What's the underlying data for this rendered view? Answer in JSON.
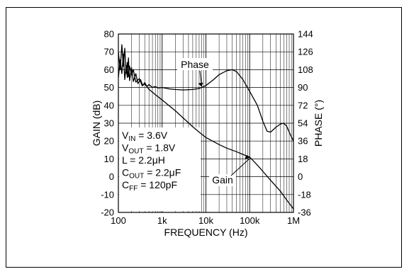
{
  "chart_data": {
    "type": "line",
    "title": "",
    "xlabel": "FREQUENCY (Hz)",
    "ylabel_left": "GAIN (dB)",
    "ylabel_right": "PHASE (°)",
    "x_scale": "log",
    "xlim": [
      100,
      1000000
    ],
    "ylim_left": [
      -20,
      80
    ],
    "ylim_right": [
      -36,
      144
    ],
    "x_ticks": [
      {
        "value": 100,
        "label": "100"
      },
      {
        "value": 1000,
        "label": "1k"
      },
      {
        "value": 10000,
        "label": "10k"
      },
      {
        "value": 100000,
        "label": "100k"
      },
      {
        "value": 1000000,
        "label": "1M"
      }
    ],
    "y_ticks_left": [
      {
        "value": 80,
        "label": "80"
      },
      {
        "value": 70,
        "label": "70"
      },
      {
        "value": 60,
        "label": "60"
      },
      {
        "value": 50,
        "label": "50"
      },
      {
        "value": 40,
        "label": "40"
      },
      {
        "value": 30,
        "label": "30"
      },
      {
        "value": 20,
        "label": "20"
      },
      {
        "value": 10,
        "label": "10"
      },
      {
        "value": 0,
        "label": "0"
      },
      {
        "value": -10,
        "label": "-10"
      },
      {
        "value": -20,
        "label": "-20"
      }
    ],
    "y_ticks_right": [
      {
        "value": 144,
        "label": "144"
      },
      {
        "value": 126,
        "label": "126"
      },
      {
        "value": 108,
        "label": "108"
      },
      {
        "value": 90,
        "label": "90"
      },
      {
        "value": 72,
        "label": "72"
      },
      {
        "value": 54,
        "label": "54"
      },
      {
        "value": 36,
        "label": "36"
      },
      {
        "value": 18,
        "label": "18"
      },
      {
        "value": 0,
        "label": "0"
      },
      {
        "value": -18,
        "label": "-18"
      },
      {
        "value": -36,
        "label": "-36"
      }
    ],
    "grid": true,
    "series": [
      {
        "name": "Phase",
        "axis": "right",
        "points": [
          [
            100,
            100
          ],
          [
            110,
            118
          ],
          [
            120,
            104
          ],
          [
            130,
            124
          ],
          [
            140,
            98
          ],
          [
            150,
            112
          ],
          [
            160,
            100
          ],
          [
            170,
            120
          ],
          [
            180,
            97
          ],
          [
            200,
            110
          ],
          [
            220,
            96
          ],
          [
            250,
            104
          ],
          [
            280,
            94
          ],
          [
            320,
            98
          ],
          [
            360,
            92
          ],
          [
            400,
            95
          ],
          [
            450,
            91
          ],
          [
            500,
            93
          ],
          [
            600,
            90
          ],
          [
            700,
            91
          ],
          [
            800,
            89.5
          ],
          [
            1000,
            90
          ],
          [
            1500,
            88.5
          ],
          [
            2000,
            88
          ],
          [
            3000,
            87.5
          ],
          [
            5000,
            88
          ],
          [
            7000,
            89
          ],
          [
            10000,
            92
          ],
          [
            15000,
            98
          ],
          [
            20000,
            103
          ],
          [
            30000,
            107
          ],
          [
            40000,
            108
          ],
          [
            50000,
            106
          ],
          [
            70000,
            98
          ],
          [
            100000,
            86
          ],
          [
            150000,
            72
          ],
          [
            200000,
            56
          ],
          [
            250000,
            46
          ],
          [
            300000,
            45
          ],
          [
            400000,
            50
          ],
          [
            500000,
            53
          ],
          [
            600000,
            54
          ],
          [
            700000,
            51
          ],
          [
            800000,
            45
          ],
          [
            900000,
            40
          ],
          [
            1000000,
            36
          ]
        ]
      },
      {
        "name": "Gain",
        "axis": "left",
        "points": [
          [
            100,
            70
          ],
          [
            110,
            60
          ],
          [
            120,
            74
          ],
          [
            130,
            62
          ],
          [
            140,
            72
          ],
          [
            150,
            58
          ],
          [
            160,
            64
          ],
          [
            170,
            56
          ],
          [
            180,
            62
          ],
          [
            200,
            57
          ],
          [
            220,
            60
          ],
          [
            250,
            53
          ],
          [
            300,
            55
          ],
          [
            350,
            51
          ],
          [
            400,
            52
          ],
          [
            500,
            49
          ],
          [
            700,
            46
          ],
          [
            1000,
            43
          ],
          [
            2000,
            37
          ],
          [
            3000,
            33
          ],
          [
            5000,
            28
          ],
          [
            7000,
            25
          ],
          [
            10000,
            22
          ],
          [
            20000,
            18
          ],
          [
            30000,
            16
          ],
          [
            50000,
            14
          ],
          [
            70000,
            12.5
          ],
          [
            100000,
            11
          ],
          [
            150000,
            6.5
          ],
          [
            200000,
            3
          ],
          [
            300000,
            -2
          ],
          [
            500000,
            -8
          ],
          [
            700000,
            -13
          ],
          [
            1000000,
            -18
          ]
        ]
      }
    ],
    "annotations": [
      {
        "text": "Phase",
        "target_series": "Phase",
        "point": [
          8000,
          90
        ]
      },
      {
        "text": "Gain",
        "target_series": "Gain",
        "point": [
          100000,
          11
        ]
      }
    ],
    "conditions": [
      {
        "main": "V",
        "sub": "IN",
        "rest": " = 3.6V"
      },
      {
        "main": "V",
        "sub": "OUT",
        "rest": " = 1.8V"
      },
      {
        "main": "L = 2.2",
        "sub": "",
        "rest": "μH"
      },
      {
        "main": "C",
        "sub": "OUT",
        "rest": " = 2.2μF"
      },
      {
        "main": "C",
        "sub": "FF",
        "rest": " = 120pF"
      }
    ]
  }
}
